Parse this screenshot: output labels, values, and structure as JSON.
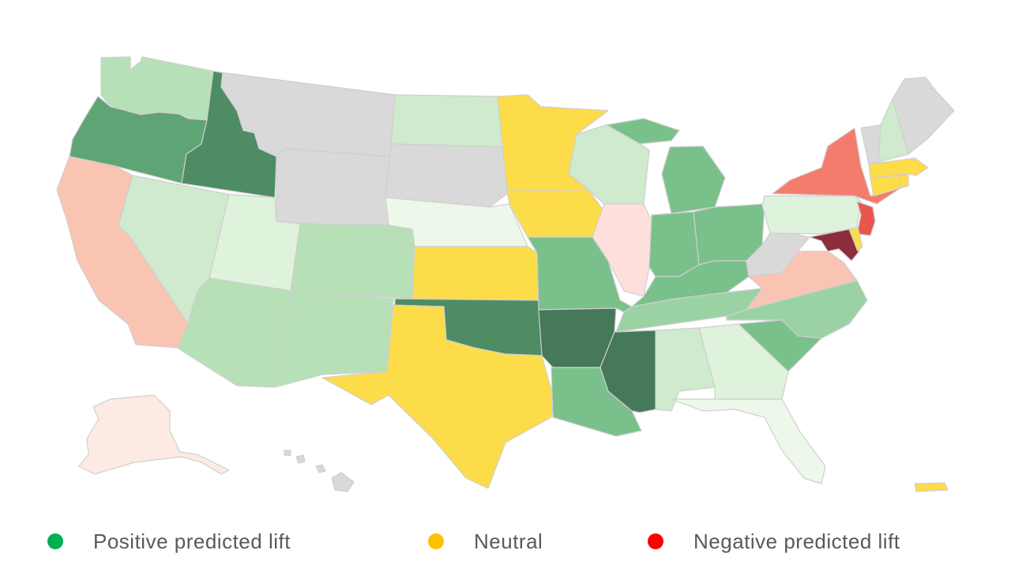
{
  "legend": {
    "items": [
      {
        "label": "Positive predicted lift",
        "color": "#00b050"
      },
      {
        "label": "Neutral",
        "color": "#ffc000"
      },
      {
        "label": "Negative predicted lift",
        "color": "#ff0000"
      }
    ]
  },
  "palette": {
    "pos_darkest": "#46785a",
    "pos_dark": "#4e8c64",
    "pos_mid_dark": "#5fa474",
    "pos_mid": "#7ac08b",
    "pos_light": "#9bd2a4",
    "pos_lighter": "#b7e0b6",
    "pos_pale": "#cfeacd",
    "pos_very_pale": "#dff2dc",
    "pos_faint": "#eef8ea",
    "neutral": "#fddc4a",
    "neg_strong": "#f47c6d",
    "neg_red": "#e8574f",
    "neg_dark": "#8b2d3b",
    "neg_light": "#f9c4b2",
    "neg_pale": "#fde0dc",
    "neg_faint": "#fdebe3",
    "no_data": "#d9d9d9",
    "border": "#cfcfcf"
  },
  "states": {
    "WA": "pos_lighter",
    "OR": "pos_mid_dark",
    "ID": "pos_dark",
    "CA": "neg_light",
    "NV": "pos_pale",
    "UT": "pos_very_pale",
    "AZ": "pos_lighter",
    "MT": "no_data",
    "WY": "no_data",
    "CO": "pos_lighter",
    "NM": "pos_lighter",
    "ND": "pos_pale",
    "SD": "no_data",
    "NE": "pos_faint",
    "KS": "neutral",
    "OK": "pos_dark",
    "TX": "neutral",
    "MN": "neutral",
    "IA": "neutral",
    "MO": "pos_mid",
    "AR": "pos_darkest",
    "LA": "pos_mid",
    "WI": "pos_pale",
    "IL": "neg_pale",
    "MI": "pos_mid",
    "IN": "pos_mid",
    "OH": "pos_mid",
    "KY": "pos_mid",
    "TN": "pos_light",
    "MS": "pos_darkest",
    "AL": "pos_pale",
    "GA": "pos_very_pale",
    "FL": "pos_faint",
    "SC": "pos_mid",
    "NC": "pos_light",
    "VA": "neg_light",
    "WV": "no_data",
    "PA": "pos_very_pale",
    "NY": "neg_strong",
    "NJ": "neg_red",
    "MD": "neg_dark",
    "DE": "neutral",
    "CT": "neutral",
    "RI": "neutral",
    "MA": "neutral",
    "VT": "no_data",
    "NH": "pos_pale",
    "ME": "no_data",
    "AK": "neg_faint",
    "HI": "no_data",
    "PR": "neutral"
  }
}
